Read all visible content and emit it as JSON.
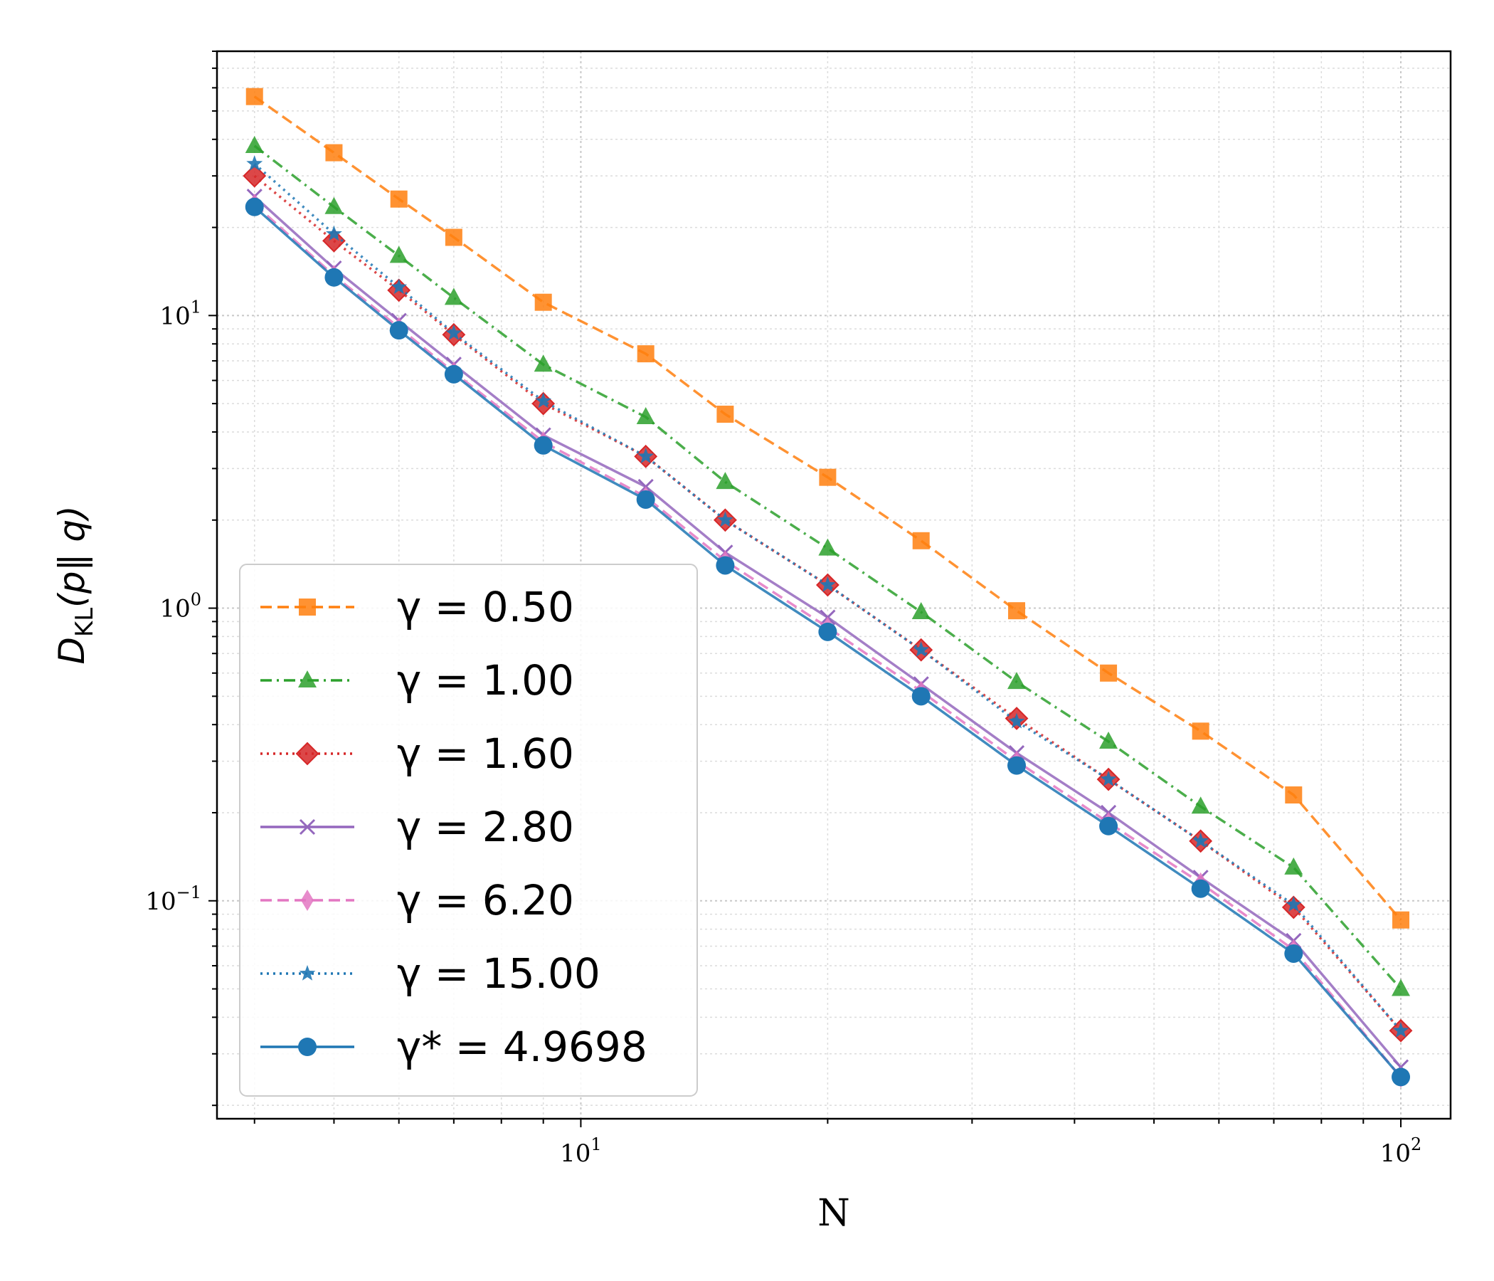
{
  "chart_data": {
    "type": "line",
    "xscale": "log",
    "yscale": "log",
    "xlabel": "N",
    "ylabel": {
      "main": "D",
      "sub": "KL",
      "args": "(p‖ q)"
    },
    "xlim": [
      3.6,
      115
    ],
    "ylim": [
      0.018,
      80
    ],
    "x_ticks": [
      {
        "value": 10,
        "base": "10",
        "exp": "1"
      },
      {
        "value": 100,
        "base": "10",
        "exp": "2"
      }
    ],
    "y_ticks": [
      {
        "value": 0.1,
        "base": "10",
        "exp": "−1"
      },
      {
        "value": 1,
        "base": "10",
        "exp": "0"
      },
      {
        "value": 10,
        "base": "10",
        "exp": "1"
      }
    ],
    "grid": true,
    "legend_position": "lower-left",
    "x": [
      4,
      5,
      6,
      7,
      9,
      12,
      15,
      20,
      26,
      34,
      44,
      57,
      74,
      100
    ],
    "series": [
      {
        "name": "γ = 0.50",
        "legend_label": "γ = 0.50",
        "color": "#ff7f0e",
        "dash": "dashed",
        "marker": "square",
        "values": [
          56,
          36,
          25,
          18.5,
          11.1,
          7.4,
          4.6,
          2.8,
          1.7,
          0.98,
          0.6,
          0.38,
          0.23,
          0.086
        ]
      },
      {
        "name": "γ = 1.00",
        "legend_label": "γ = 1.00",
        "color": "#2ca02c",
        "dash": "dashdot",
        "marker": "triangle",
        "values": [
          38,
          23.5,
          16,
          11.5,
          6.8,
          4.5,
          2.7,
          1.6,
          0.97,
          0.56,
          0.35,
          0.21,
          0.13,
          0.05
        ]
      },
      {
        "name": "γ = 1.60",
        "legend_label": "γ = 1.60",
        "color": "#d62728",
        "dash": "dotted",
        "marker": "diamond",
        "values": [
          30,
          18,
          12.2,
          8.6,
          5.0,
          3.3,
          2.0,
          1.2,
          0.72,
          0.42,
          0.26,
          0.16,
          0.095,
          0.036
        ]
      },
      {
        "name": "γ = 2.80",
        "legend_label": "γ = 2.80",
        "color": "#9467bd",
        "dash": "solid",
        "marker": "x",
        "values": [
          25.5,
          14.5,
          9.6,
          6.8,
          3.9,
          2.6,
          1.55,
          0.93,
          0.55,
          0.32,
          0.2,
          0.12,
          0.073,
          0.027
        ]
      },
      {
        "name": "γ = 6.20",
        "legend_label": "γ = 6.20",
        "color": "#e377c2",
        "dash": "dashed",
        "marker": "thin-diamond",
        "values": [
          24,
          13.7,
          9.1,
          6.4,
          3.7,
          2.4,
          1.45,
          0.86,
          0.52,
          0.3,
          0.185,
          0.115,
          0.068,
          0.025
        ]
      },
      {
        "name": "γ = 15.00",
        "legend_label": "γ = 15.00",
        "color": "#1f77b4",
        "dash": "dotted",
        "marker": "star",
        "values": [
          33,
          19,
          12.5,
          8.7,
          5.1,
          3.3,
          2.0,
          1.2,
          0.72,
          0.41,
          0.26,
          0.16,
          0.097,
          0.036
        ]
      },
      {
        "name": "γ* = 4.9698",
        "legend_label": "γ* = 4.9698",
        "color": "#1f77b4",
        "dash": "solid",
        "marker": "circle",
        "values": [
          23.5,
          13.5,
          8.9,
          6.3,
          3.6,
          2.35,
          1.4,
          0.83,
          0.5,
          0.29,
          0.18,
          0.11,
          0.066,
          0.025
        ]
      }
    ]
  }
}
